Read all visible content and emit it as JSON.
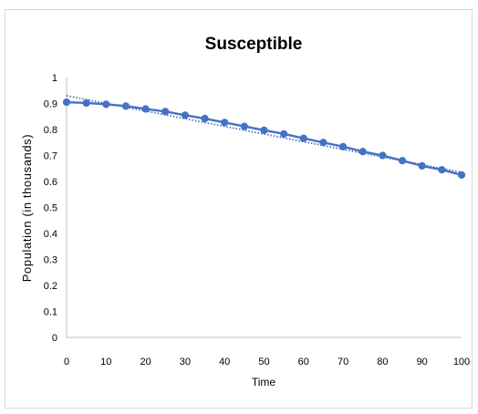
{
  "chart_data": {
    "type": "line",
    "title": "Susceptible",
    "xlabel": "Time",
    "ylabel": "Population  (in thousands)",
    "xlim": [
      0,
      100
    ],
    "ylim": [
      0,
      1
    ],
    "x_ticks": [
      "0",
      "10",
      "20",
      "30",
      "40",
      "50",
      "60",
      "70",
      "80",
      "90",
      "100"
    ],
    "y_ticks": [
      "0",
      "0.1",
      "0.2",
      "0.3",
      "0.4",
      "0.5",
      "0.6",
      "0.7",
      "0.8",
      "0.9",
      "1"
    ],
    "grid": false,
    "legend": "none",
    "series": [
      {
        "style": "solid line with circle markers",
        "color": "#4472c4",
        "x": [
          0,
          5,
          10,
          15,
          20,
          25,
          30,
          35,
          40,
          45,
          50,
          55,
          60,
          65,
          70,
          75,
          80,
          85,
          90,
          95,
          100
        ],
        "values": [
          0.905,
          0.902,
          0.897,
          0.89,
          0.879,
          0.869,
          0.855,
          0.842,
          0.827,
          0.812,
          0.797,
          0.783,
          0.766,
          0.75,
          0.734,
          0.715,
          0.7,
          0.68,
          0.66,
          0.645,
          0.625
        ]
      },
      {
        "style": "dotted linear trendline",
        "color": "#4472c4",
        "x": [
          0,
          100
        ],
        "values": [
          0.93,
          0.635
        ]
      }
    ]
  }
}
